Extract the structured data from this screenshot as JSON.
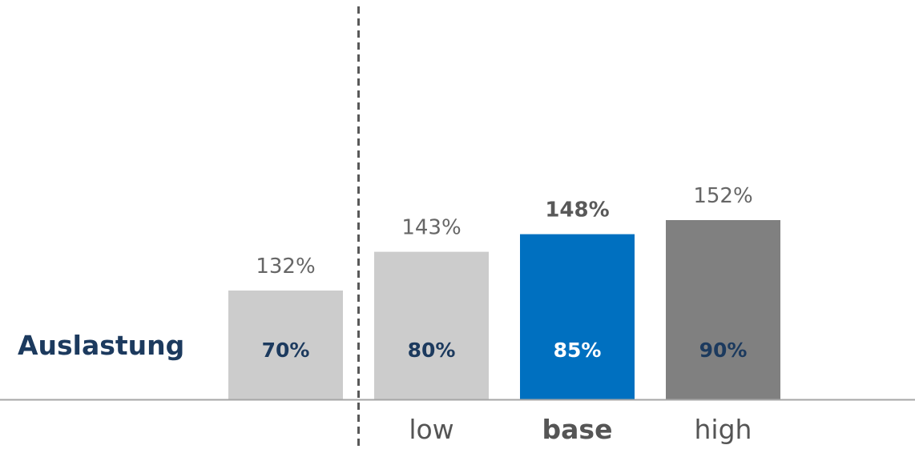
{
  "chart_data": {
    "type": "bar",
    "row_label": "Auslastung",
    "categories": [
      "",
      "low",
      "base",
      "high"
    ],
    "utilization_labels": [
      "70%",
      "80%",
      "85%",
      "90%"
    ],
    "values": [
      132,
      143,
      148,
      152
    ],
    "value_labels": [
      "132%",
      "143%",
      "148%",
      "152%"
    ],
    "highlight_category": "base",
    "colors": {
      "bars": [
        "#cccccc",
        "#cccccc",
        "#0070c0",
        "#808080"
      ],
      "inner_labels": [
        "#1c3a5e",
        "#1c3a5e",
        "#ffffff",
        "#1c3a5e"
      ],
      "value_label_default": "#666666",
      "value_label_highlight": "#595959",
      "category_label": "#555555",
      "row_label": "#1c3a5e",
      "baseline": "#a6a6a6",
      "divider": "#595959"
    },
    "divider_between": [
      "",
      "low"
    ],
    "legend": "none",
    "grid": false
  }
}
